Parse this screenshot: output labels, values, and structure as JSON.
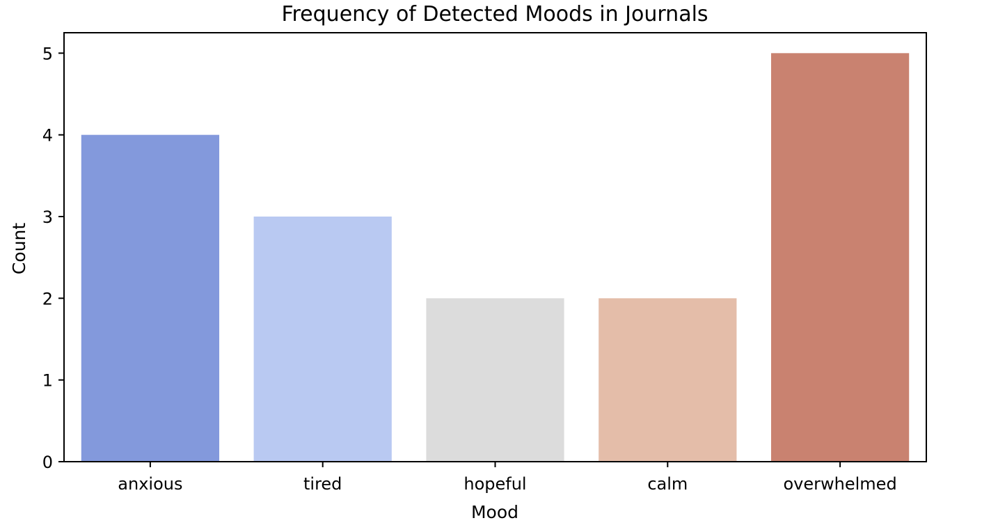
{
  "chart_data": {
    "type": "bar",
    "title": "Frequency of Detected Moods in Journals",
    "xlabel": "Mood",
    "ylabel": "Count",
    "categories": [
      "anxious",
      "tired",
      "hopeful",
      "calm",
      "overwhelmed"
    ],
    "values": [
      4,
      3,
      2,
      2,
      5
    ],
    "colors": [
      "#8399dc",
      "#b9c9f2",
      "#dcdcdc",
      "#e4bda9",
      "#c98270"
    ],
    "ylim": [
      0,
      5.25
    ],
    "yticks": [
      0,
      1,
      2,
      3,
      4,
      5
    ],
    "grid": false,
    "legend": "none"
  }
}
